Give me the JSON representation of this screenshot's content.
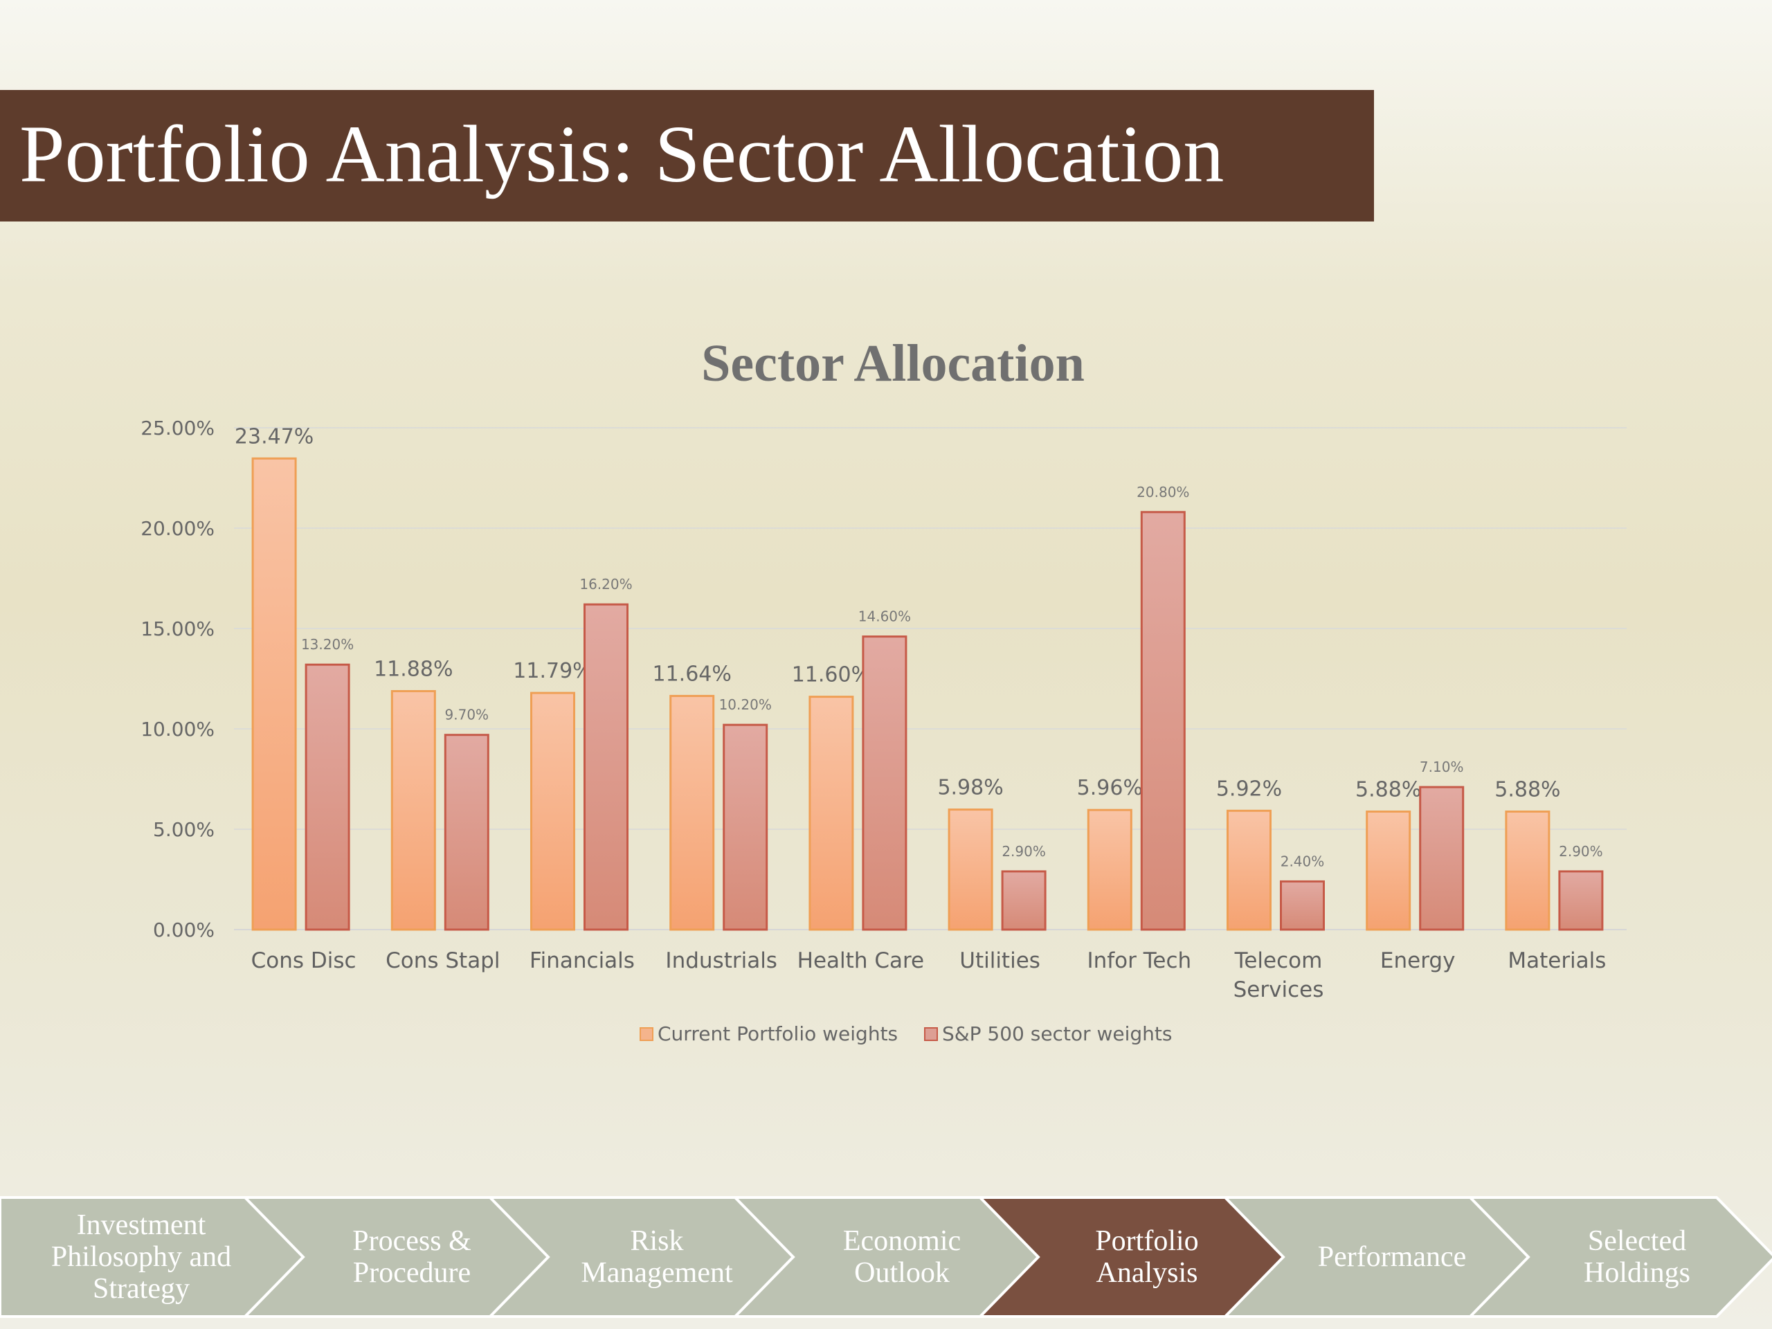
{
  "slide": {
    "title": "Portfolio Analysis: Sector Allocation"
  },
  "colors": {
    "title_bar": "#5e3c2c",
    "portfolio_bar": "#f5b48c",
    "portfolio_border": "#ef9f55",
    "sp500_bar": "#dd9f94",
    "sp500_border": "#c65a48",
    "nav_inactive": "#bcc2b2",
    "nav_active": "#7a5040"
  },
  "chart_data": {
    "type": "bar",
    "title": "Sector Allocation",
    "categories": [
      "Cons Disc",
      "Cons Stapl",
      "Financials",
      "Industrials",
      "Health Care",
      "Utilities",
      "Infor Tech",
      "Telecom Services",
      "Energy",
      "Materials"
    ],
    "series": [
      {
        "name": "Current Portfolio weights",
        "values": [
          23.47,
          11.88,
          11.79,
          11.64,
          11.6,
          5.98,
          5.96,
          5.92,
          5.88,
          5.88
        ],
        "labels": [
          "23.47%",
          "11.88%",
          "11.79%",
          "11.64%",
          "11.60%",
          "5.98%",
          "5.96%",
          "5.92%",
          "5.88%",
          "5.88%"
        ]
      },
      {
        "name": "S&P 500 sector weights",
        "values": [
          13.2,
          9.7,
          16.2,
          10.2,
          14.6,
          2.9,
          20.8,
          2.4,
          7.1,
          2.9
        ],
        "labels": [
          "13.20%",
          "9.70%",
          "16.20%",
          "10.20%",
          "14.60%",
          "2.90%",
          "20.80%",
          "2.40%",
          "7.10%",
          "2.90%"
        ]
      }
    ],
    "ylim": [
      0,
      25
    ],
    "yticks": [
      "0.00%",
      "5.00%",
      "10.00%",
      "15.00%",
      "20.00%",
      "25.00%"
    ],
    "grid": true,
    "legend": "bottom"
  },
  "nav": {
    "items": [
      {
        "label": "Investment\nPhilosophy and\nStrategy",
        "active": false
      },
      {
        "label": "Process &\nProcedure",
        "active": false
      },
      {
        "label": "Risk\nManagement",
        "active": false
      },
      {
        "label": "Economic\nOutlook",
        "active": false
      },
      {
        "label": "Portfolio\nAnalysis",
        "active": true
      },
      {
        "label": "Performance",
        "active": false
      },
      {
        "label": "Selected\nHoldings",
        "active": false
      }
    ]
  }
}
